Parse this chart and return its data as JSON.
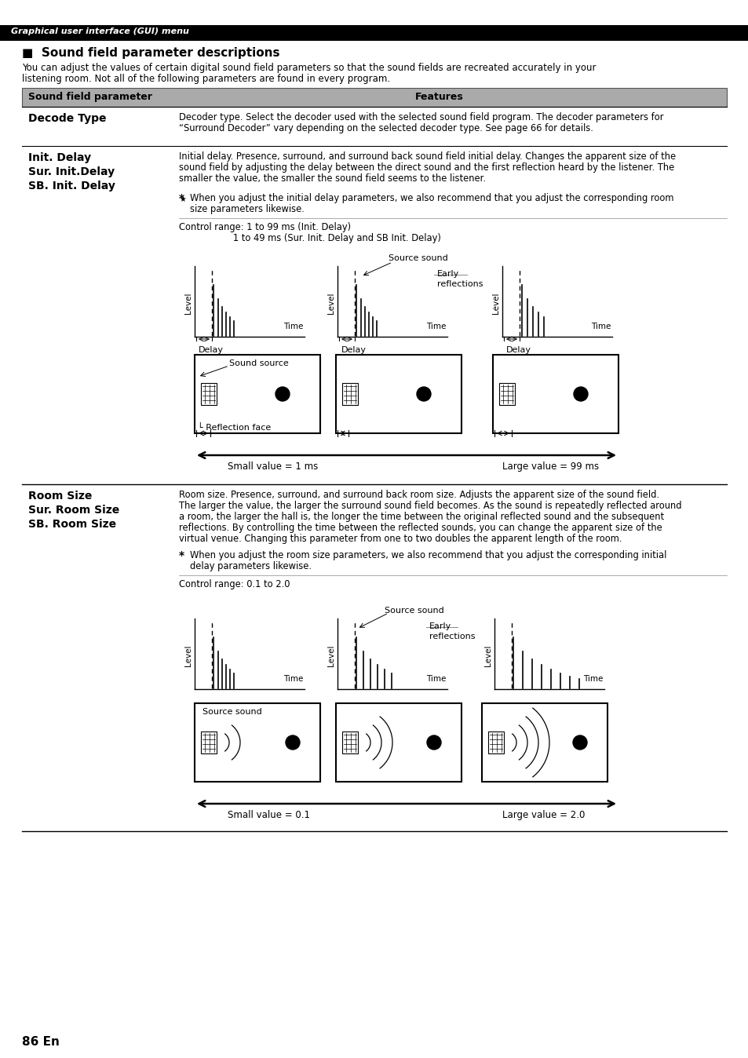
{
  "page_bg": "#ffffff",
  "header_bg": "#000000",
  "header_text": "Graphical user interface (GUI) menu",
  "header_text_color": "#ffffff",
  "title": "■  Sound field parameter descriptions",
  "intro_text1": "You can adjust the values of certain digital sound field parameters so that the sound fields are recreated accurately in your",
  "intro_text2": "listening room. Not all of the following parameters are found in every program.",
  "table_header_bg": "#aaaaaa",
  "table_header_col1": "Sound field parameter",
  "table_header_col2": "Features",
  "row1_param": "Decode Type",
  "row1_feature1": "Decoder type. Select the decoder used with the selected sound field program. The decoder parameters for",
  "row1_feature2": "“Surround Decoder” vary depending on the selected decoder type. See page 66 for details.",
  "row2_param_lines": [
    "Init. Delay",
    "Sur. Init.Delay",
    "SB. Init. Delay"
  ],
  "row2_feature1": "Initial delay. Presence, surround, and surround back sound field initial delay. Changes the apparent size of the",
  "row2_feature2": "sound field by adjusting the delay between the direct sound and the first reflection heard by the listener. The",
  "row2_feature3": "smaller the value, the smaller the sound field seems to the listener.",
  "row2_note1": "When you adjust the initial delay parameters, we also recommend that you adjust the corresponding room",
  "row2_note2": "size parameters likewise.",
  "row2_ctrl1": "Control range: 1 to 99 ms (Init. Delay)",
  "row2_ctrl2": "                   1 to 49 ms (Sur. Init. Delay and SB Init. Delay)",
  "diag1_source_sound": "Source sound",
  "diag1_early1": "Early",
  "diag1_early2": "reflections",
  "diag1_delay": "Delay",
  "diag1_time": "Time",
  "diag1_level": "Level",
  "diag1_sound_source": "Sound source",
  "diag1_reflection_face": "Reflection face",
  "diag1_small": "Small value = 1 ms",
  "diag1_large": "Large value = 99 ms",
  "row3_param_lines": [
    "Room Size",
    "Sur. Room Size",
    "SB. Room Size"
  ],
  "row3_feature1": "Room size. Presence, surround, and surround back room size. Adjusts the apparent size of the sound field.",
  "row3_feature2": "The larger the value, the larger the surround sound field becomes. As the sound is repeatedly reflected around",
  "row3_feature3": "a room, the larger the hall is, the longer the time between the original reflected sound and the subsequent",
  "row3_feature4": "reflections. By controlling the time between the reflected sounds, you can change the apparent size of the",
  "row3_feature5": "virtual venue. Changing this parameter from one to two doubles the apparent length of the room.",
  "row3_note1": "When you adjust the room size parameters, we also recommend that you adjust the corresponding initial",
  "row3_note2": "delay parameters likewise.",
  "row3_ctrl": "Control range: 0.1 to 2.0",
  "diag2_source_sound": "Source sound",
  "diag2_early1": "Early",
  "diag2_early2": "reflections",
  "diag2_small": "Small value = 0.1",
  "diag2_large": "Large value = 2.0",
  "footer_text": "86 En"
}
